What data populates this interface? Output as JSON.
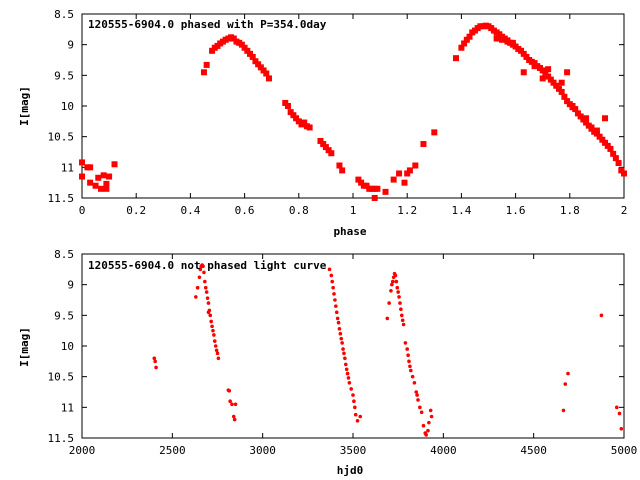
{
  "colors": {
    "points": "#ff0000",
    "axes": "#000000",
    "background": "#ffffff"
  },
  "chart_data": [
    {
      "type": "scatter",
      "title": "120555-6904.0 phased with P=354.0day",
      "xlabel": "phase",
      "ylabel": "I[mag]",
      "xlim": [
        0,
        2
      ],
      "ylim": [
        11.5,
        8.5
      ],
      "y_inverted": true,
      "grid": false,
      "xticks": [
        0,
        0.2,
        0.4,
        0.6,
        0.8,
        1,
        1.2,
        1.4,
        1.6,
        1.8,
        2
      ],
      "xtick_labels": [
        "0",
        "0.2",
        "0.4",
        "0.6",
        "0.8",
        "1",
        "1.2",
        "1.4",
        "1.6",
        "1.8",
        "2"
      ],
      "yticks": [
        8.5,
        9,
        9.5,
        10,
        10.5,
        11,
        11.5
      ],
      "ytick_labels": [
        "8.5",
        "9",
        "9.5",
        "10",
        "10.5",
        "11",
        "11.5"
      ],
      "marker": "filled-square",
      "series": [
        {
          "points": [
            [
              0.0,
              10.92
            ],
            [
              0.0,
              11.15
            ],
            [
              0.02,
              11.0
            ],
            [
              0.03,
              11.0
            ],
            [
              0.03,
              11.25
            ],
            [
              0.05,
              11.3
            ],
            [
              0.06,
              11.17
            ],
            [
              0.07,
              11.35
            ],
            [
              0.08,
              11.13
            ],
            [
              0.09,
              11.35
            ],
            [
              0.09,
              11.27
            ],
            [
              0.1,
              11.15
            ],
            [
              0.12,
              10.95
            ],
            [
              0.45,
              9.45
            ],
            [
              0.46,
              9.33
            ],
            [
              0.48,
              9.1
            ],
            [
              0.49,
              9.05
            ],
            [
              0.5,
              9.02
            ],
            [
              0.51,
              8.98
            ],
            [
              0.52,
              8.95
            ],
            [
              0.53,
              8.92
            ],
            [
              0.54,
              8.9
            ],
            [
              0.55,
              8.88
            ],
            [
              0.56,
              8.9
            ],
            [
              0.57,
              8.95
            ],
            [
              0.58,
              8.97
            ],
            [
              0.59,
              9.0
            ],
            [
              0.6,
              9.05
            ],
            [
              0.61,
              9.1
            ],
            [
              0.62,
              9.15
            ],
            [
              0.63,
              9.2
            ],
            [
              0.64,
              9.27
            ],
            [
              0.65,
              9.32
            ],
            [
              0.66,
              9.37
            ],
            [
              0.67,
              9.42
            ],
            [
              0.68,
              9.47
            ],
            [
              0.69,
              9.55
            ],
            [
              0.75,
              9.95
            ],
            [
              0.76,
              10.0
            ],
            [
              0.77,
              10.1
            ],
            [
              0.78,
              10.15
            ],
            [
              0.79,
              10.2
            ],
            [
              0.8,
              10.25
            ],
            [
              0.81,
              10.3
            ],
            [
              0.82,
              10.27
            ],
            [
              0.83,
              10.33
            ],
            [
              0.84,
              10.35
            ],
            [
              0.88,
              10.57
            ],
            [
              0.89,
              10.62
            ],
            [
              0.9,
              10.67
            ],
            [
              0.91,
              10.72
            ],
            [
              0.92,
              10.77
            ],
            [
              0.95,
              10.97
            ],
            [
              0.96,
              11.05
            ],
            [
              1.02,
              11.2
            ],
            [
              1.03,
              11.25
            ],
            [
              1.04,
              11.3
            ],
            [
              1.05,
              11.3
            ],
            [
              1.06,
              11.35
            ],
            [
              1.07,
              11.35
            ],
            [
              1.08,
              11.5
            ],
            [
              1.08,
              11.35
            ],
            [
              1.09,
              11.35
            ],
            [
              1.12,
              11.4
            ],
            [
              1.15,
              11.2
            ],
            [
              1.17,
              11.1
            ],
            [
              1.19,
              11.25
            ],
            [
              1.2,
              11.1
            ],
            [
              1.21,
              11.05
            ],
            [
              1.23,
              10.97
            ],
            [
              1.26,
              10.62
            ],
            [
              1.3,
              10.43
            ],
            [
              1.38,
              9.22
            ],
            [
              1.4,
              9.05
            ],
            [
              1.41,
              8.98
            ],
            [
              1.42,
              8.92
            ],
            [
              1.43,
              8.87
            ],
            [
              1.44,
              8.8
            ],
            [
              1.45,
              8.77
            ],
            [
              1.46,
              8.73
            ],
            [
              1.47,
              8.7
            ],
            [
              1.48,
              8.7
            ],
            [
              1.49,
              8.69
            ],
            [
              1.5,
              8.7
            ],
            [
              1.51,
              8.73
            ],
            [
              1.52,
              8.77
            ],
            [
              1.53,
              8.8
            ],
            [
              1.54,
              8.83
            ],
            [
              1.55,
              8.87
            ],
            [
              1.56,
              8.9
            ],
            [
              1.57,
              8.93
            ],
            [
              1.58,
              8.97
            ],
            [
              1.59,
              9.0
            ],
            [
              1.6,
              9.03
            ],
            [
              1.61,
              9.07
            ],
            [
              1.53,
              8.9
            ],
            [
              1.55,
              8.92
            ],
            [
              1.57,
              8.95
            ],
            [
              1.59,
              8.97
            ],
            [
              1.62,
              9.1
            ],
            [
              1.63,
              9.15
            ],
            [
              1.64,
              9.2
            ],
            [
              1.65,
              9.25
            ],
            [
              1.66,
              9.28
            ],
            [
              1.67,
              9.3
            ],
            [
              1.68,
              9.35
            ],
            [
              1.69,
              9.38
            ],
            [
              1.7,
              9.42
            ],
            [
              1.71,
              9.47
            ],
            [
              1.72,
              9.52
            ],
            [
              1.73,
              9.57
            ],
            [
              1.74,
              9.62
            ],
            [
              1.75,
              9.67
            ],
            [
              1.76,
              9.72
            ],
            [
              1.77,
              9.77
            ],
            [
              1.78,
              9.85
            ],
            [
              1.79,
              9.92
            ],
            [
              1.8,
              9.97
            ],
            [
              1.81,
              10.0
            ],
            [
              1.82,
              10.05
            ],
            [
              1.83,
              10.12
            ],
            [
              1.84,
              10.17
            ],
            [
              1.85,
              10.22
            ],
            [
              1.86,
              10.27
            ],
            [
              1.87,
              10.32
            ],
            [
              1.88,
              10.37
            ],
            [
              1.89,
              10.42
            ],
            [
              1.9,
              10.45
            ],
            [
              1.91,
              10.5
            ],
            [
              1.92,
              10.55
            ],
            [
              1.93,
              10.6
            ],
            [
              1.94,
              10.65
            ],
            [
              1.95,
              10.7
            ],
            [
              1.96,
              10.78
            ],
            [
              1.97,
              10.85
            ],
            [
              1.98,
              10.93
            ],
            [
              1.99,
              11.05
            ],
            [
              2.0,
              11.1
            ],
            [
              1.63,
              9.45
            ],
            [
              1.67,
              9.35
            ],
            [
              1.7,
              9.55
            ],
            [
              1.72,
              9.4
            ],
            [
              1.77,
              9.62
            ],
            [
              1.79,
              9.45
            ],
            [
              1.81,
              10.02
            ],
            [
              1.86,
              10.2
            ],
            [
              1.88,
              10.35
            ],
            [
              1.9,
              10.4
            ],
            [
              1.93,
              10.2
            ]
          ]
        }
      ]
    },
    {
      "type": "scatter",
      "title": "120555-6904.0 not phased light curve",
      "xlabel": "hjd0",
      "ylabel": "I[mag]",
      "xlim": [
        2000,
        5000
      ],
      "ylim": [
        11.5,
        8.5
      ],
      "y_inverted": true,
      "grid": false,
      "xticks": [
        2000,
        2500,
        3000,
        3500,
        4000,
        4500,
        5000
      ],
      "xtick_labels": [
        "2000",
        "2500",
        "3000",
        "3500",
        "4000",
        "4500",
        "5000"
      ],
      "yticks": [
        8.5,
        9,
        9.5,
        10,
        10.5,
        11,
        11.5
      ],
      "ytick_labels": [
        "8.5",
        "9",
        "9.5",
        "10",
        "10.5",
        "11",
        "11.5"
      ],
      "marker": "small-dot",
      "series": [
        {
          "points": [
            [
              2400,
              10.2
            ],
            [
              2405,
              10.25
            ],
            [
              2410,
              10.35
            ],
            [
              2630,
              9.2
            ],
            [
              2640,
              9.05
            ],
            [
              2650,
              8.88
            ],
            [
              2655,
              8.75
            ],
            [
              2660,
              8.7
            ],
            [
              2665,
              8.68
            ],
            [
              2670,
              8.7
            ],
            [
              2675,
              8.8
            ],
            [
              2680,
              8.95
            ],
            [
              2685,
              9.05
            ],
            [
              2690,
              9.12
            ],
            [
              2695,
              9.22
            ],
            [
              2700,
              9.3
            ],
            [
              2705,
              9.42
            ],
            [
              2710,
              9.5
            ],
            [
              2715,
              9.6
            ],
            [
              2720,
              9.68
            ],
            [
              2725,
              9.75
            ],
            [
              2730,
              9.82
            ],
            [
              2735,
              9.92
            ],
            [
              2740,
              10.0
            ],
            [
              2745,
              10.07
            ],
            [
              2750,
              10.12
            ],
            [
              2755,
              10.2
            ],
            [
              2700,
              9.45
            ],
            [
              2810,
              10.72
            ],
            [
              2815,
              10.73
            ],
            [
              2820,
              10.9
            ],
            [
              2830,
              10.95
            ],
            [
              2840,
              11.15
            ],
            [
              2845,
              11.2
            ],
            [
              2850,
              10.95
            ],
            [
              3370,
              8.75
            ],
            [
              3380,
              8.85
            ],
            [
              3385,
              8.95
            ],
            [
              3390,
              9.05
            ],
            [
              3395,
              9.15
            ],
            [
              3400,
              9.25
            ],
            [
              3405,
              9.35
            ],
            [
              3410,
              9.45
            ],
            [
              3415,
              9.55
            ],
            [
              3420,
              9.62
            ],
            [
              3425,
              9.72
            ],
            [
              3430,
              9.8
            ],
            [
              3435,
              9.88
            ],
            [
              3440,
              9.95
            ],
            [
              3445,
              10.05
            ],
            [
              3450,
              10.12
            ],
            [
              3455,
              10.2
            ],
            [
              3460,
              10.3
            ],
            [
              3465,
              10.38
            ],
            [
              3470,
              10.45
            ],
            [
              3475,
              10.52
            ],
            [
              3480,
              10.6
            ],
            [
              3490,
              10.7
            ],
            [
              3500,
              10.8
            ],
            [
              3505,
              10.9
            ],
            [
              3510,
              11.0
            ],
            [
              3515,
              11.12
            ],
            [
              3525,
              11.22
            ],
            [
              3540,
              11.15
            ],
            [
              3690,
              9.55
            ],
            [
              3700,
              9.3
            ],
            [
              3710,
              9.1
            ],
            [
              3715,
              9.0
            ],
            [
              3720,
              8.95
            ],
            [
              3725,
              8.88
            ],
            [
              3730,
              8.82
            ],
            [
              3735,
              8.85
            ],
            [
              3740,
              8.95
            ],
            [
              3745,
              9.05
            ],
            [
              3750,
              9.12
            ],
            [
              3755,
              9.2
            ],
            [
              3760,
              9.3
            ],
            [
              3765,
              9.4
            ],
            [
              3770,
              9.5
            ],
            [
              3775,
              9.58
            ],
            [
              3780,
              9.65
            ],
            [
              3790,
              9.95
            ],
            [
              3800,
              10.05
            ],
            [
              3805,
              10.15
            ],
            [
              3810,
              10.25
            ],
            [
              3815,
              10.33
            ],
            [
              3820,
              10.4
            ],
            [
              3830,
              10.5
            ],
            [
              3840,
              10.6
            ],
            [
              3850,
              10.75
            ],
            [
              3855,
              10.8
            ],
            [
              3860,
              10.88
            ],
            [
              3870,
              11.0
            ],
            [
              3880,
              11.08
            ],
            [
              3890,
              11.3
            ],
            [
              3900,
              11.42
            ],
            [
              3905,
              11.45
            ],
            [
              3915,
              11.38
            ],
            [
              3920,
              11.25
            ],
            [
              3930,
              11.05
            ],
            [
              3935,
              11.15
            ],
            [
              4665,
              11.05
            ],
            [
              4675,
              10.62
            ],
            [
              4690,
              10.45
            ],
            [
              4875,
              9.5
            ],
            [
              4960,
              11.0
            ],
            [
              4975,
              11.1
            ],
            [
              4985,
              11.35
            ]
          ]
        }
      ]
    }
  ]
}
